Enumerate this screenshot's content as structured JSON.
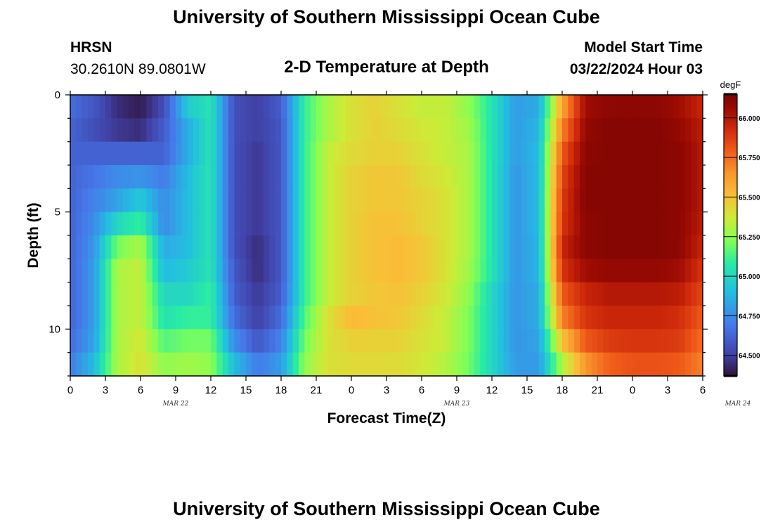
{
  "header": {
    "title": "University of Southern Mississippi Ocean Cube",
    "station": "HRSN",
    "coordinates": "30.2610N  89.0801W",
    "subtitle": "2-D Temperature at Depth",
    "model_start_label": "Model Start Time",
    "model_start_value": "03/22/2024 Hour 03",
    "footer_title": "University of Southern Mississippi Ocean Cube"
  },
  "chart_data": {
    "type": "heatmap",
    "title": "2-D Temperature at Depth",
    "xlabel": "Forecast Time(Z)",
    "ylabel": "Depth (ft)",
    "x_hours": [
      0,
      54
    ],
    "x_tick_labels": [
      "0",
      "3",
      "6",
      "9",
      "12",
      "15",
      "18",
      "21",
      "0",
      "3",
      "6",
      "9",
      "12",
      "15",
      "18",
      "21",
      "0",
      "3",
      "6"
    ],
    "date_labels": [
      "MAR 22",
      "MAR 23",
      "MAR 24"
    ],
    "y_ticks": [
      0,
      5,
      10
    ],
    "ylim": [
      0,
      12
    ],
    "colorbar": {
      "unit": "degF",
      "range": [
        64.37,
        66.15
      ],
      "tick_values": [
        64.5,
        64.75,
        65.0,
        65.25,
        65.5,
        65.75,
        66.0
      ],
      "tick_labels": [
        "64.500",
        "64.750",
        "65.000",
        "65.250",
        "65.500",
        "65.750",
        "66.000"
      ]
    },
    "depth_levels_ft": [
      0.5,
      1.5,
      2.5,
      3.5,
      4.5,
      5.5,
      6.5,
      7.5,
      8.5,
      9.5,
      10.5,
      11.5
    ],
    "time_hours": [
      0,
      2,
      4,
      6,
      8,
      10,
      12,
      14,
      16,
      18,
      20,
      22,
      24,
      26,
      28,
      30,
      32,
      34,
      36,
      38,
      40,
      42,
      44,
      46,
      48,
      50,
      52,
      54
    ],
    "temperature_degF": [
      [
        64.65,
        64.58,
        64.45,
        64.4,
        64.55,
        64.95,
        65.05,
        64.55,
        64.5,
        64.6,
        65.1,
        65.3,
        65.4,
        65.45,
        65.4,
        65.35,
        65.35,
        65.25,
        65.05,
        64.8,
        64.85,
        65.6,
        66.05,
        66.1,
        66.1,
        66.1,
        66.05,
        65.95
      ],
      [
        64.62,
        64.55,
        64.48,
        64.45,
        64.6,
        64.85,
        65.05,
        64.55,
        64.5,
        64.58,
        65.1,
        65.3,
        65.4,
        65.45,
        65.42,
        65.38,
        65.35,
        65.28,
        65.05,
        64.8,
        64.88,
        65.7,
        66.08,
        66.12,
        66.12,
        66.12,
        66.08,
        65.98
      ],
      [
        64.62,
        64.62,
        64.62,
        64.62,
        64.62,
        64.85,
        65.05,
        64.55,
        64.48,
        64.58,
        65.1,
        65.35,
        65.42,
        65.45,
        65.45,
        65.4,
        65.35,
        65.3,
        65.05,
        64.8,
        64.9,
        65.8,
        66.1,
        66.12,
        66.12,
        66.12,
        66.1,
        66.0
      ],
      [
        64.62,
        64.68,
        64.75,
        64.78,
        64.7,
        64.9,
        65.05,
        64.55,
        64.48,
        64.58,
        65.1,
        65.35,
        65.45,
        65.48,
        65.48,
        65.42,
        65.38,
        65.3,
        65.05,
        64.78,
        64.9,
        65.85,
        66.12,
        66.12,
        66.12,
        66.12,
        66.1,
        66.0
      ],
      [
        64.62,
        64.72,
        64.82,
        64.95,
        64.75,
        64.9,
        65.05,
        64.55,
        64.48,
        64.58,
        65.1,
        65.35,
        65.45,
        65.48,
        65.48,
        65.45,
        65.4,
        65.3,
        65.05,
        64.78,
        64.9,
        65.88,
        66.12,
        66.12,
        66.12,
        66.12,
        66.1,
        66.0
      ],
      [
        64.62,
        64.75,
        65.0,
        65.1,
        64.75,
        64.9,
        65.05,
        64.55,
        64.48,
        64.58,
        65.1,
        65.35,
        65.45,
        65.5,
        65.5,
        65.45,
        65.4,
        65.3,
        65.05,
        64.78,
        64.9,
        65.9,
        66.1,
        66.12,
        66.12,
        66.12,
        66.1,
        65.98
      ],
      [
        64.62,
        64.78,
        65.2,
        65.3,
        64.85,
        64.9,
        65.05,
        64.55,
        64.45,
        64.58,
        65.1,
        65.35,
        65.45,
        65.5,
        65.52,
        65.48,
        65.4,
        65.3,
        65.05,
        64.78,
        64.88,
        65.95,
        66.1,
        66.12,
        66.12,
        66.12,
        66.1,
        65.95
      ],
      [
        64.62,
        64.8,
        65.3,
        65.35,
        64.9,
        64.95,
        65.05,
        64.58,
        64.45,
        64.58,
        65.1,
        65.35,
        65.45,
        65.5,
        65.52,
        65.48,
        65.4,
        65.28,
        65.05,
        64.78,
        64.88,
        65.9,
        66.05,
        66.08,
        66.08,
        66.08,
        66.05,
        65.9
      ],
      [
        64.62,
        64.8,
        65.3,
        65.35,
        65.0,
        65.0,
        65.1,
        64.6,
        64.48,
        64.6,
        65.1,
        65.35,
        65.45,
        65.48,
        65.5,
        65.45,
        65.38,
        65.25,
        65.0,
        64.78,
        64.85,
        65.8,
        65.95,
        66.0,
        66.0,
        66.0,
        65.98,
        65.85
      ],
      [
        64.62,
        64.8,
        65.3,
        65.35,
        65.05,
        65.1,
        65.1,
        64.65,
        64.5,
        64.65,
        65.15,
        65.4,
        65.52,
        65.5,
        65.48,
        65.42,
        65.35,
        65.22,
        65.0,
        64.78,
        64.85,
        65.7,
        65.9,
        65.95,
        65.95,
        65.95,
        65.92,
        65.8
      ],
      [
        64.65,
        64.82,
        65.3,
        65.38,
        65.15,
        65.2,
        65.2,
        64.75,
        64.58,
        64.72,
        65.2,
        65.4,
        65.45,
        65.45,
        65.45,
        65.4,
        65.35,
        65.22,
        65.0,
        64.78,
        64.82,
        65.5,
        65.8,
        65.88,
        65.9,
        65.9,
        65.88,
        65.75
      ],
      [
        64.7,
        64.9,
        65.3,
        65.4,
        65.25,
        65.28,
        65.25,
        64.9,
        64.7,
        64.8,
        65.25,
        65.4,
        65.42,
        65.42,
        65.42,
        65.38,
        65.32,
        65.2,
        65.0,
        64.8,
        64.8,
        65.3,
        65.65,
        65.78,
        65.82,
        65.82,
        65.8,
        65.7
      ]
    ]
  }
}
